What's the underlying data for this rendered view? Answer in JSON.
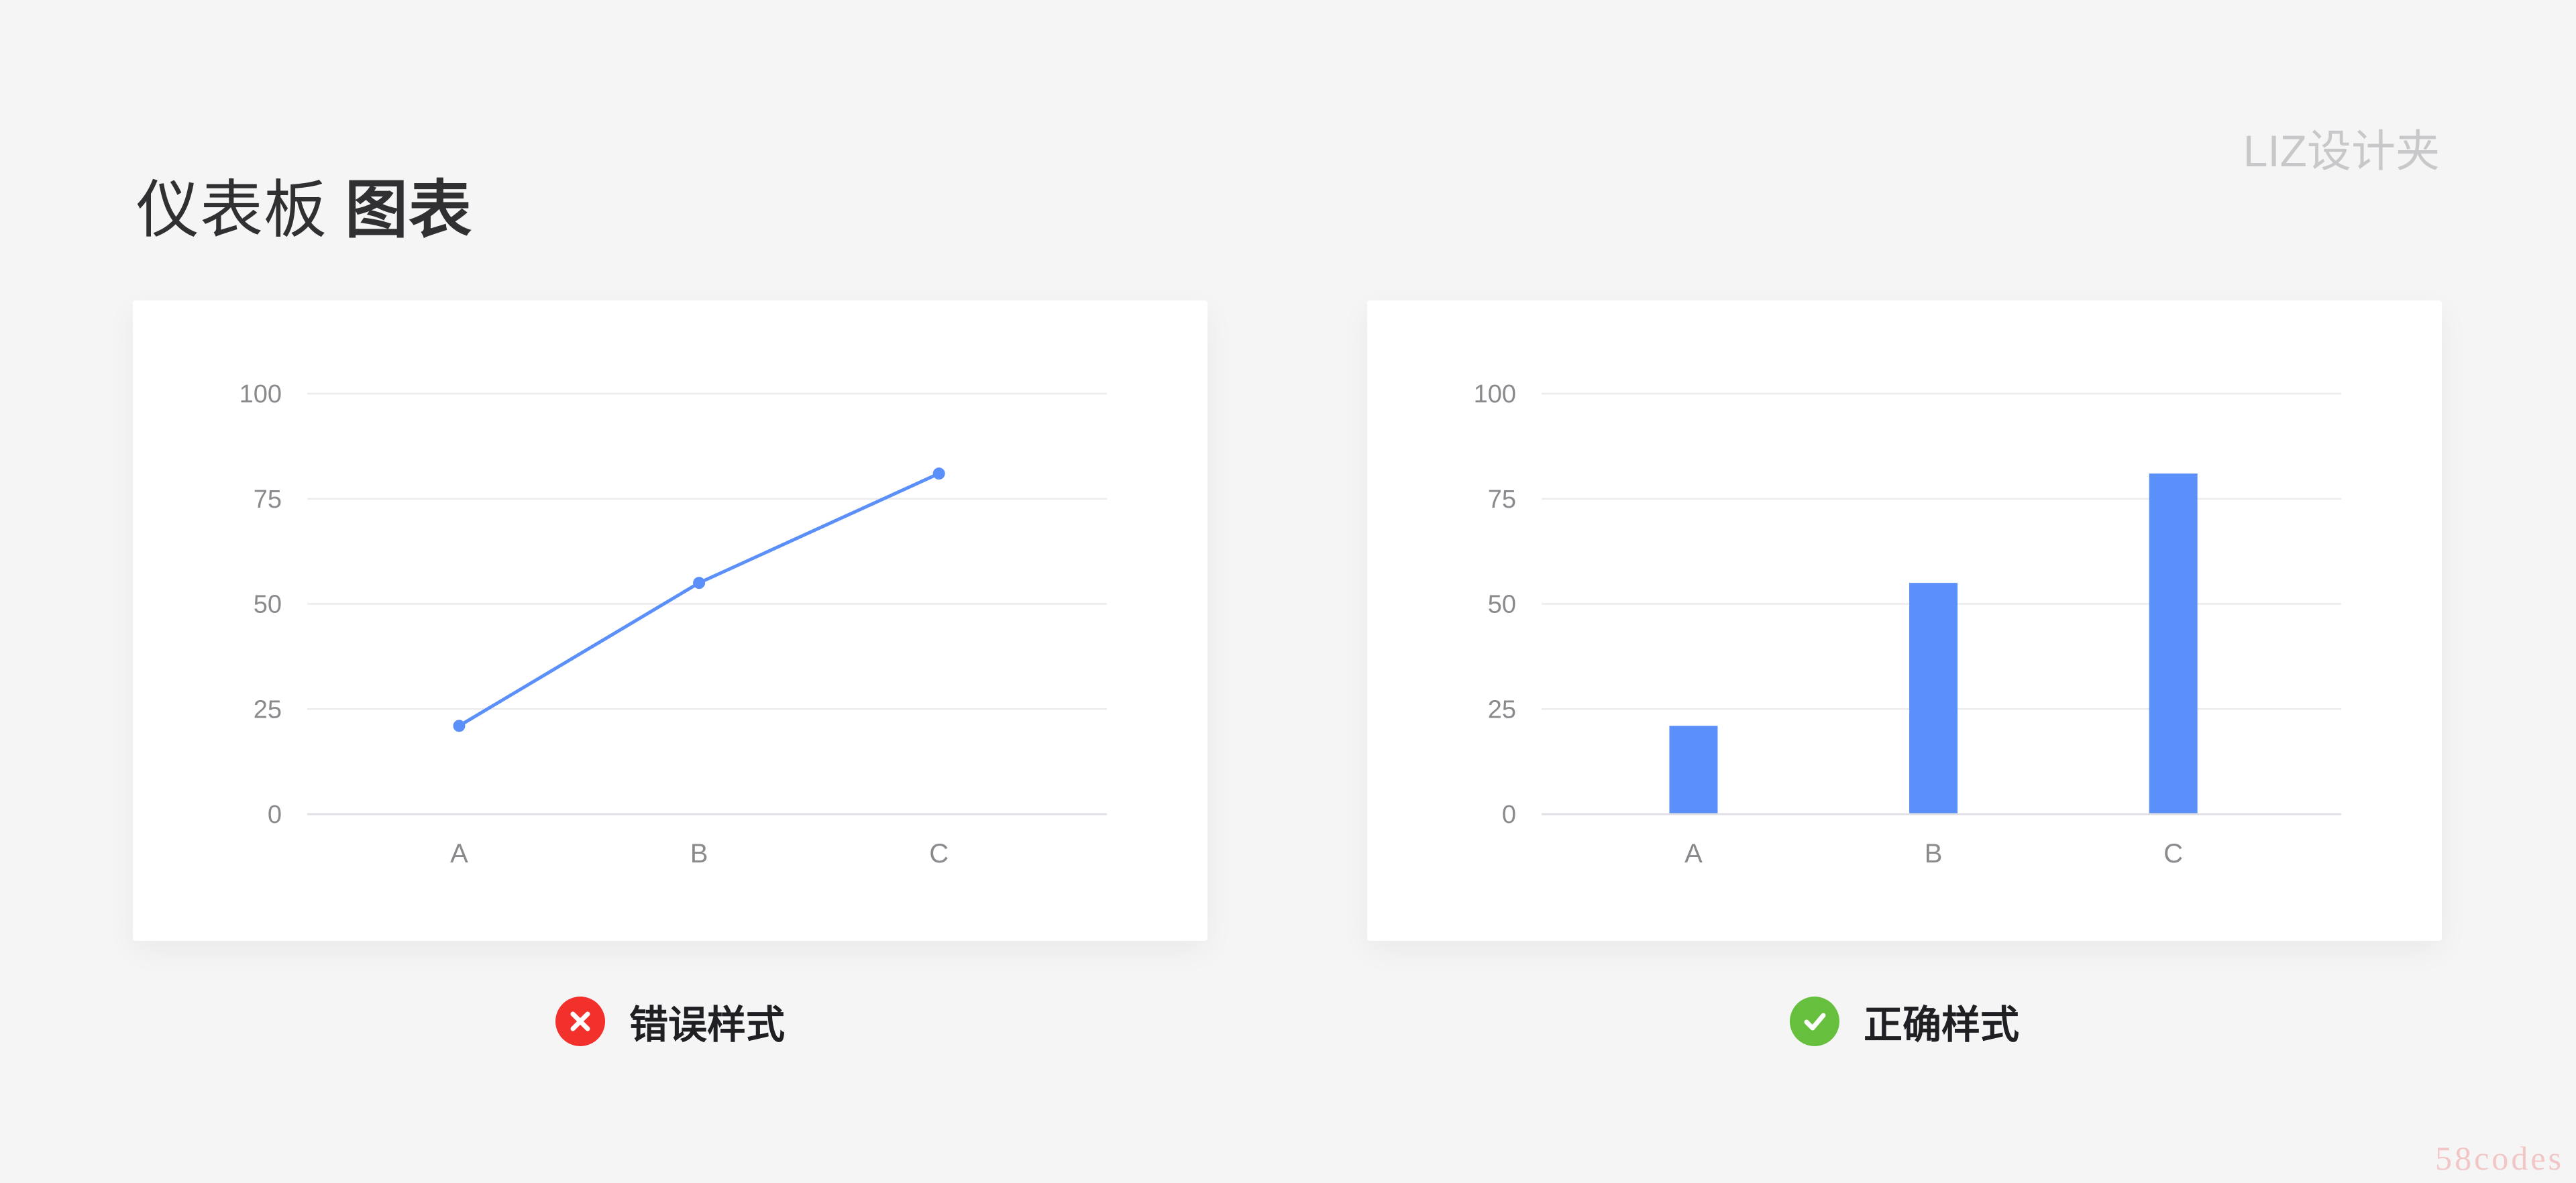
{
  "header": {
    "title_regular": "仪表板",
    "title_bold": "图表",
    "brand": "LIZ设计夹"
  },
  "chart_data": [
    {
      "type": "line",
      "categories": [
        "A",
        "B",
        "C"
      ],
      "values": [
        21,
        55,
        81
      ],
      "yticks": [
        100,
        75,
        50,
        25,
        0
      ],
      "ylim": [
        0,
        100
      ],
      "grid": true,
      "legend": "none",
      "title": "",
      "xlabel": "",
      "ylabel": "",
      "color": "#5B8FF9"
    },
    {
      "type": "bar",
      "categories": [
        "A",
        "B",
        "C"
      ],
      "values": [
        21,
        55,
        81
      ],
      "yticks": [
        100,
        75,
        50,
        25,
        0
      ],
      "ylim": [
        0,
        100
      ],
      "grid": true,
      "legend": "none",
      "title": "",
      "xlabel": "",
      "ylabel": "",
      "color": "#5B8FF9"
    }
  ],
  "captions": [
    {
      "icon": "error-icon",
      "label": "错误样式",
      "color": "#f2302c"
    },
    {
      "icon": "success-icon",
      "label": "正确样式",
      "color": "#66bf3d"
    }
  ],
  "watermark": "58codes"
}
